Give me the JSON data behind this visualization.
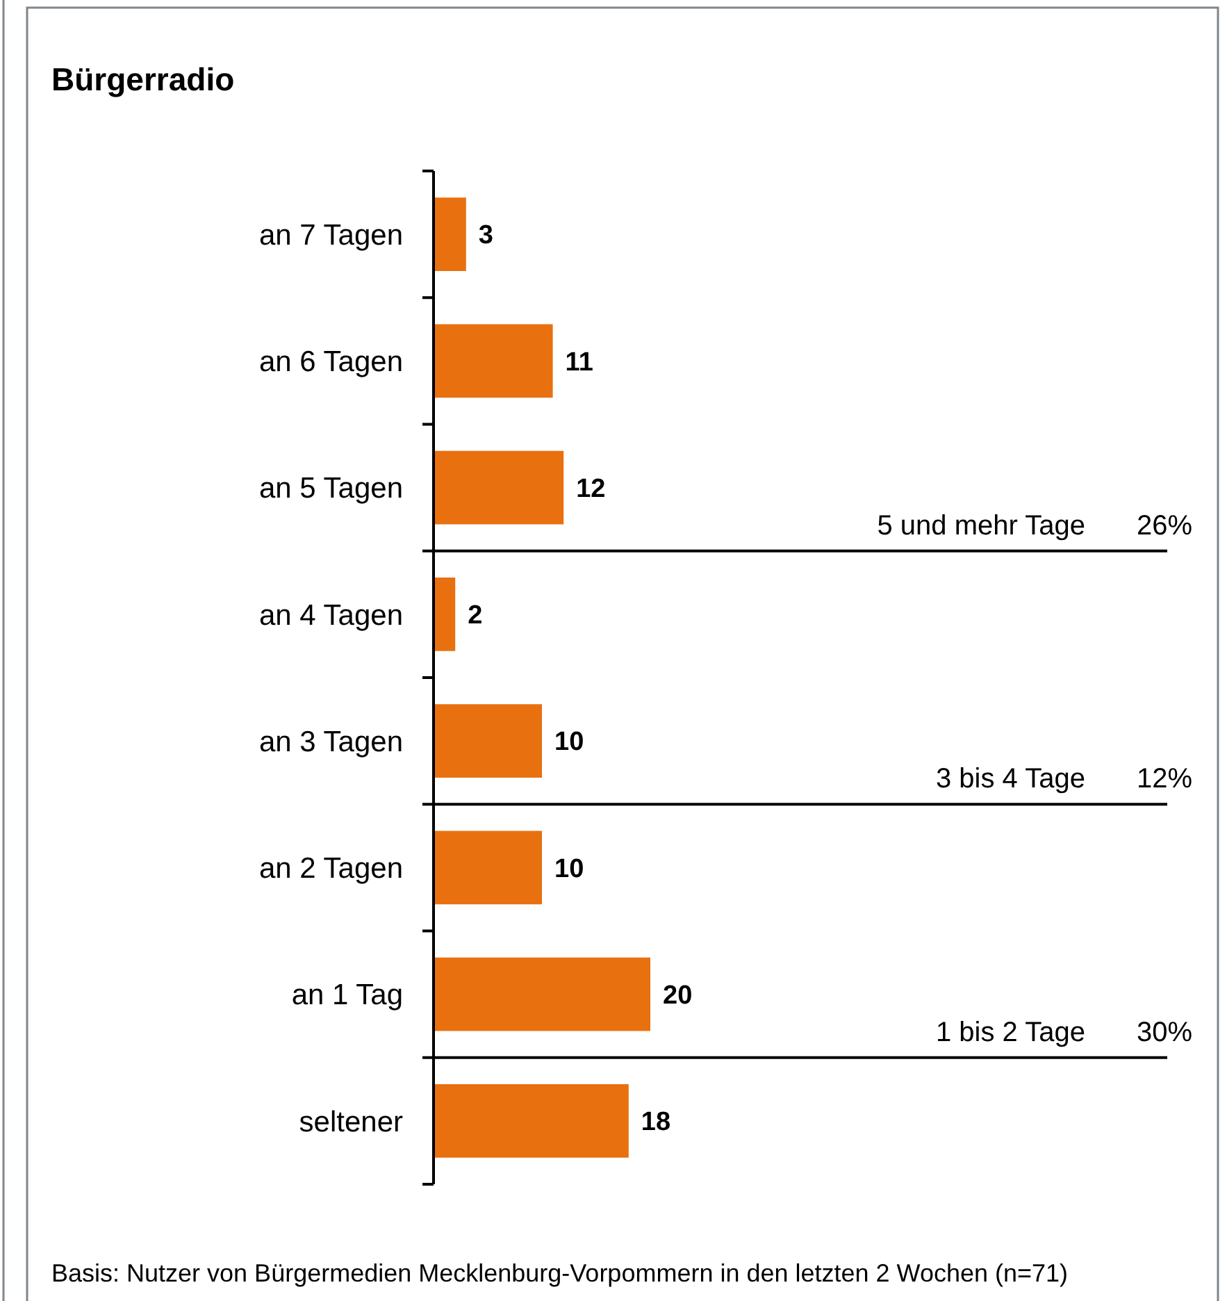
{
  "chart_data": {
    "type": "bar",
    "orientation": "horizontal",
    "title": "Bürgerradio",
    "categories": [
      "an 7 Tagen",
      "an 6 Tagen",
      "an 5 Tagen",
      "an 4 Tagen",
      "an 3 Tagen",
      "an 2 Tagen",
      "an 1 Tag",
      "seltener"
    ],
    "values": [
      3,
      11,
      12,
      2,
      10,
      10,
      20,
      18
    ],
    "color": "#e9700f",
    "data_labels": true,
    "annotations": [
      "5 und mehr Tage",
      "26%",
      "3 bis 4 Tage",
      "12%",
      "1 bis 2 Tage",
      "30%",
      "Basis: Nutzer von Bürgermedien Mecklenburg-Vorpommern in den letzten 2 Wochen (n=71)"
    ]
  }
}
